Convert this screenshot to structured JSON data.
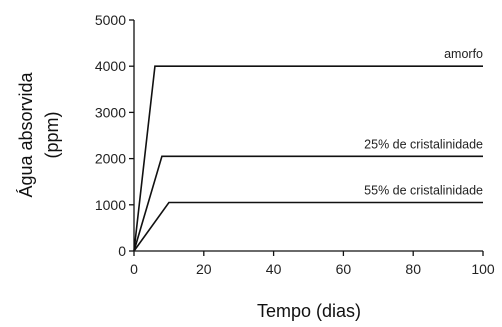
{
  "chart_data": {
    "type": "line",
    "title": "",
    "xlabel": "Tempo (dias)",
    "ylabel_lines": [
      "Água absorvida",
      "(ppm)"
    ],
    "xlim": [
      0,
      100
    ],
    "ylim": [
      0,
      5000
    ],
    "xticks": [
      0,
      20,
      40,
      60,
      80,
      100
    ],
    "yticks": [
      0,
      1000,
      2000,
      3000,
      4000,
      5000
    ],
    "grid": false,
    "legend": "none",
    "series": [
      {
        "name": "amorfo",
        "x": [
          0,
          6,
          100
        ],
        "y": [
          0,
          4000,
          4000
        ]
      },
      {
        "name": "25% de cristalinidade",
        "x": [
          0,
          8,
          100
        ],
        "y": [
          0,
          2050,
          2050
        ]
      },
      {
        "name": "55% de cristalinidade",
        "x": [
          0,
          10,
          100
        ],
        "y": [
          0,
          1050,
          1050
        ]
      }
    ]
  }
}
